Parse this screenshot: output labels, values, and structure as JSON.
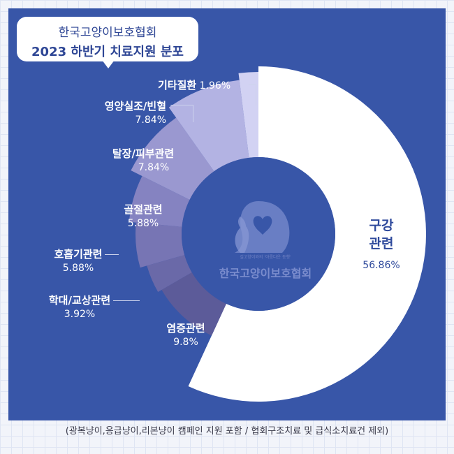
{
  "bubble": {
    "org": "한국고양이보호협회",
    "title": "2023 하반기 치료지원 분포"
  },
  "chart_data": {
    "type": "pie",
    "title": "2023 하반기 치료지원 분포",
    "donut": true,
    "categories": [
      "구강관련",
      "염증관련",
      "학대/교상관련",
      "호흡기관련",
      "골절관련",
      "탈장/피부관련",
      "영양실조/빈혈",
      "기타질환"
    ],
    "values": [
      56.86,
      9.8,
      3.92,
      5.88,
      5.88,
      7.84,
      7.84,
      1.96
    ],
    "colors": [
      "#ffffff",
      "#5c5b99",
      "#6a69a8",
      "#7775b4",
      "#8583c1",
      "#9a98d0",
      "#b3b3e3",
      "#d2d2f3"
    ],
    "label_text": {
      "oral_1": "구강",
      "oral_2": "관련",
      "oral_pct": "56.86%",
      "inflam": "염증관련",
      "inflam_pct": "9.8%",
      "abuse": "학대/교상관련",
      "abuse_pct": "3.92%",
      "resp": "호흡기관련",
      "resp_pct": "5.88%",
      "fract": "골절관련",
      "fract_pct": "5.88%",
      "hernia": "탈장/피부관련",
      "hernia_pct": "7.84%",
      "nutri": "영양실조/빈혈",
      "nutri_pct": "7.84%",
      "other": "기타질환",
      "other_pct": "1.96%"
    }
  },
  "logo": {
    "tagline": "길고양이와의 '아름다운 동행'",
    "name": "한국고양이보호협회",
    "icon": "cat-heart-logo-icon"
  },
  "footnote": "(광복냥이,응급냥이,리본냥이 캠페인 지원 포함 / 협회구조치료 및 급식소치료건 제외)"
}
